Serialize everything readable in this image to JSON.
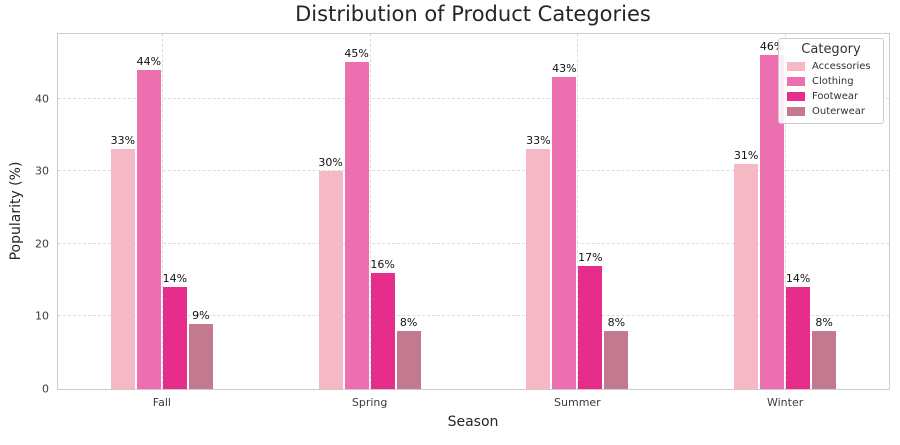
{
  "chart_data": {
    "type": "bar",
    "title": "Distribution of Product Categories",
    "xlabel": "Season",
    "ylabel": "Popularity (%)",
    "categories": [
      "Fall",
      "Spring",
      "Summer",
      "Winter"
    ],
    "series": [
      {
        "name": "Accessories",
        "color": "#F5B9C5",
        "values": [
          33,
          30,
          33,
          31
        ],
        "labels": [
          "33%",
          "30%",
          "33%",
          "31%"
        ]
      },
      {
        "name": "Clothing",
        "color": "#EC6FB0",
        "values": [
          44,
          45,
          43,
          46
        ],
        "labels": [
          "44%",
          "45%",
          "43%",
          "46%"
        ]
      },
      {
        "name": "Footwear",
        "color": "#E62D8C",
        "values": [
          14,
          16,
          17,
          14
        ],
        "labels": [
          "14%",
          "16%",
          "17%",
          "14%"
        ]
      },
      {
        "name": "Outerwear",
        "color": "#C47A8E",
        "values": [
          9,
          8,
          8,
          8
        ],
        "labels": [
          "9%",
          "8%",
          "8%",
          "8%"
        ]
      }
    ],
    "yticks": [
      0,
      10,
      20,
      30,
      40
    ],
    "ylim": [
      0,
      48.9
    ],
    "grid": true,
    "grid_style": "dashed",
    "legend": {
      "title": "Category",
      "position": "upper right"
    },
    "colors": {
      "spine": "#cccccc",
      "gridline": "#dcdcdc",
      "tick_text": "#3b3b3b",
      "title_text": "#262626"
    }
  }
}
